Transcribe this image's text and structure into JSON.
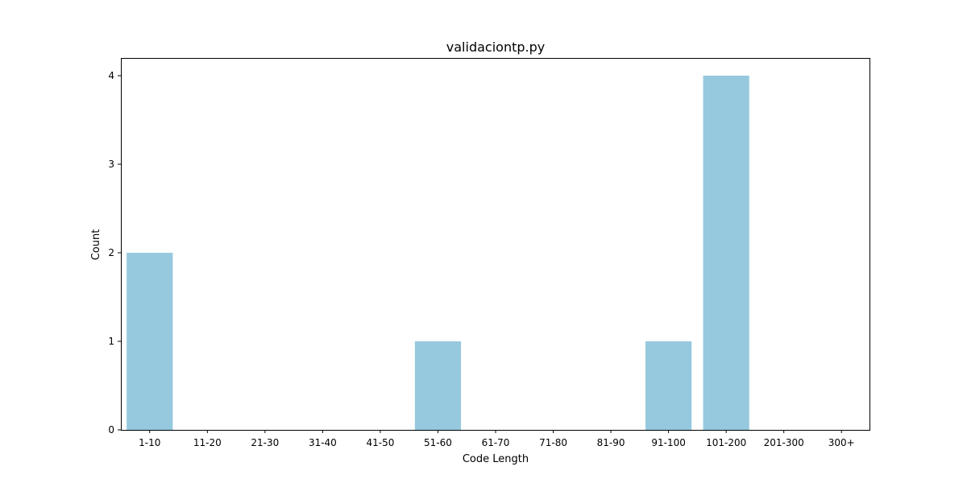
{
  "chart_data": {
    "type": "bar",
    "title": "validaciontp.py",
    "xlabel": "Code Length",
    "ylabel": "Count",
    "categories": [
      "1-10",
      "11-20",
      "21-30",
      "31-40",
      "41-50",
      "51-60",
      "61-70",
      "71-80",
      "81-90",
      "91-100",
      "101-200",
      "201-300",
      "300+"
    ],
    "values": [
      2,
      0,
      0,
      0,
      0,
      1,
      0,
      0,
      0,
      1,
      4,
      0,
      0
    ],
    "ylim": [
      0,
      4.2
    ],
    "yticks": [
      0,
      1,
      2,
      3,
      4
    ],
    "grid": false,
    "bar_color": "#96c9de"
  }
}
